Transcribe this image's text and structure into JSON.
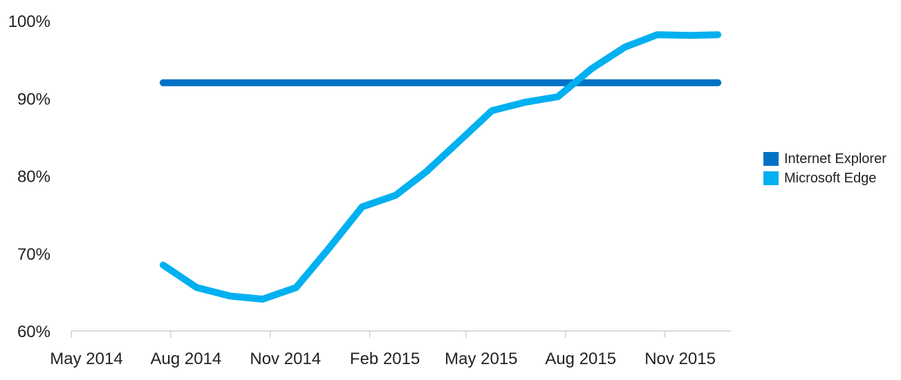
{
  "chart_data": {
    "type": "line",
    "title": "",
    "xlabel": "",
    "ylabel": "",
    "x_axis": {
      "ticks": [
        "2014-05",
        "2014-08",
        "2014-11",
        "2015-02",
        "2015-05",
        "2015-08",
        "2015-11"
      ],
      "tick_labels": [
        "May 2014",
        "Aug 2014",
        "Nov 2014",
        "Feb 2015",
        "May 2015",
        "Aug 2015",
        "Nov 2015"
      ],
      "range": [
        "2014-05",
        "2016-01"
      ]
    },
    "y_axis": {
      "ticks": [
        60,
        70,
        80,
        90,
        100
      ],
      "tick_labels": [
        "60%",
        "70%",
        "80%",
        "90%",
        "100%"
      ],
      "range": [
        60,
        100
      ],
      "unit": "%"
    },
    "grid": false,
    "legend_position": "right",
    "series": [
      {
        "name": "Internet Explorer",
        "color": "#0072C6",
        "x": [
          "2014-07-25",
          "2015-12-20"
        ],
        "values": [
          92,
          92
        ]
      },
      {
        "name": "Microsoft Edge",
        "color": "#00B0F0",
        "x": [
          "2014-07-25",
          "2014-08-25",
          "2014-09-25",
          "2014-10-25",
          "2014-11-25",
          "2014-12-25",
          "2015-01-25",
          "2015-02-25",
          "2015-03-25",
          "2015-04-25",
          "2015-05-25",
          "2015-06-25",
          "2015-07-25",
          "2015-08-25",
          "2015-09-25",
          "2015-10-25",
          "2015-11-25",
          "2015-12-20"
        ],
        "values": [
          68.5,
          65.6,
          64.5,
          64.1,
          65.6,
          70.6,
          76.0,
          77.5,
          80.5,
          84.5,
          88.4,
          89.5,
          90.2,
          93.8,
          96.6,
          98.2,
          98.1,
          98.2
        ]
      }
    ]
  }
}
